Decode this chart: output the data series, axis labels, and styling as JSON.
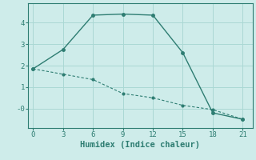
{
  "xlabel": "Humidex (Indice chaleur)",
  "background_color": "#ceecea",
  "line1_x": [
    0,
    3,
    6,
    9,
    12,
    15,
    18,
    21
  ],
  "line1_y": [
    1.85,
    2.75,
    4.35,
    4.4,
    4.35,
    2.6,
    -0.2,
    -0.5
  ],
  "line2_x": [
    0,
    3,
    6,
    9,
    12,
    15,
    18,
    21
  ],
  "line2_y": [
    1.85,
    1.6,
    1.35,
    0.7,
    0.5,
    0.15,
    -0.05,
    -0.5
  ],
  "line_color": "#2e7d72",
  "xlim": [
    -0.5,
    22
  ],
  "ylim": [
    -0.9,
    4.9
  ],
  "xticks": [
    0,
    3,
    6,
    9,
    12,
    15,
    18,
    21
  ],
  "yticks": [
    0,
    1,
    2,
    3,
    4
  ],
  "ytick_labels": [
    "-0",
    "1",
    "2",
    "3",
    "4"
  ],
  "grid_color": "#aad8d4",
  "font_color": "#2e7d72",
  "tick_fontsize": 6.5,
  "xlabel_fontsize": 7.5
}
